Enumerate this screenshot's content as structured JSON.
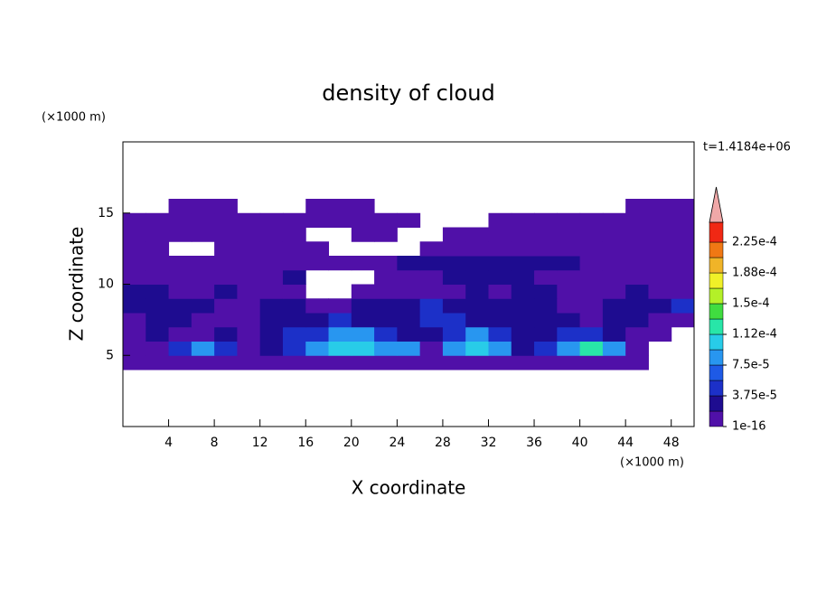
{
  "chart_data": {
    "type": "contour",
    "title": "density of cloud",
    "xlabel": "X coordinate",
    "ylabel": "Z coordinate",
    "x_unit": "(×1000 m)",
    "y_unit": "(×1000 m)",
    "annotation": "t=1.4184e+06",
    "xlim": [
      0,
      50
    ],
    "ylim": [
      0,
      20
    ],
    "xticks": [
      4,
      8,
      12,
      16,
      20,
      24,
      28,
      32,
      36,
      40,
      44,
      48
    ],
    "yticks": [
      5,
      10,
      15
    ],
    "x": [
      0,
      2,
      4,
      6,
      8,
      10,
      12,
      14,
      16,
      18,
      20,
      22,
      24,
      26,
      28,
      30,
      32,
      34,
      36,
      38,
      40,
      42,
      44,
      46,
      48,
      50
    ],
    "z": [
      4,
      5,
      6,
      7,
      8,
      9,
      10,
      11,
      12,
      13,
      14,
      15,
      16
    ],
    "values": [
      [
        1e-05,
        1e-05,
        1e-05,
        1e-05,
        1e-05,
        1e-05,
        1e-05,
        1e-05,
        1e-05,
        1e-05,
        1e-05,
        1e-05,
        1e-05,
        1e-05,
        1e-05,
        1e-05,
        1e-05,
        1e-05,
        1e-05,
        1e-05,
        1e-05,
        1e-05,
        1e-05,
        null,
        null
      ],
      [
        1e-05,
        1e-05,
        5e-05,
        8e-05,
        5e-05,
        1e-05,
        3e-05,
        5e-05,
        8e-05,
        0.000105,
        0.000105,
        8e-05,
        8e-05,
        1e-05,
        8e-05,
        0.000105,
        8e-05,
        3e-05,
        5e-05,
        8e-05,
        0.00013,
        8e-05,
        1e-05,
        null,
        null
      ],
      [
        1e-05,
        3e-05,
        1e-05,
        1e-05,
        3e-05,
        1e-05,
        3e-05,
        5e-05,
        5e-05,
        8e-05,
        8e-05,
        5e-05,
        3e-05,
        3e-05,
        5e-05,
        8e-05,
        5e-05,
        3e-05,
        3e-05,
        5e-05,
        5e-05,
        3e-05,
        1e-05,
        1e-05,
        null
      ],
      [
        1e-05,
        3e-05,
        3e-05,
        1e-05,
        1e-05,
        1e-05,
        3e-05,
        3e-05,
        3e-05,
        5e-05,
        3e-05,
        3e-05,
        3e-05,
        5e-05,
        5e-05,
        3e-05,
        3e-05,
        3e-05,
        3e-05,
        3e-05,
        1e-05,
        3e-05,
        3e-05,
        1e-05,
        1e-05
      ],
      [
        3e-05,
        3e-05,
        3e-05,
        3e-05,
        1e-05,
        1e-05,
        3e-05,
        3e-05,
        1e-05,
        1e-05,
        3e-05,
        3e-05,
        3e-05,
        5e-05,
        3e-05,
        3e-05,
        3e-05,
        3e-05,
        3e-05,
        1e-05,
        1e-05,
        3e-05,
        3e-05,
        3e-05,
        5e-05
      ],
      [
        3e-05,
        3e-05,
        1e-05,
        1e-05,
        3e-05,
        1e-05,
        1e-05,
        1e-05,
        null,
        null,
        1e-05,
        1e-05,
        1e-05,
        1e-05,
        1e-05,
        3e-05,
        1e-05,
        3e-05,
        3e-05,
        1e-05,
        1e-05,
        1e-05,
        3e-05,
        1e-05,
        1e-05
      ],
      [
        1e-05,
        1e-05,
        1e-05,
        1e-05,
        1e-05,
        1e-05,
        1e-05,
        3e-05,
        null,
        null,
        null,
        1e-05,
        1e-05,
        1e-05,
        3e-05,
        3e-05,
        3e-05,
        3e-05,
        1e-05,
        1e-05,
        1e-05,
        1e-05,
        1e-05,
        1e-05,
        1e-05
      ],
      [
        1e-05,
        1e-05,
        1e-05,
        1e-05,
        1e-05,
        1e-05,
        1e-05,
        1e-05,
        1e-05,
        1e-05,
        1e-05,
        1e-05,
        3e-05,
        3e-05,
        3e-05,
        3e-05,
        3e-05,
        3e-05,
        3e-05,
        3e-05,
        1e-05,
        1e-05,
        1e-05,
        1e-05,
        1e-05
      ],
      [
        1e-05,
        1e-05,
        null,
        null,
        1e-05,
        1e-05,
        1e-05,
        1e-05,
        1e-05,
        null,
        null,
        null,
        null,
        1e-05,
        1e-05,
        1e-05,
        1e-05,
        1e-05,
        1e-05,
        1e-05,
        1e-05,
        1e-05,
        1e-05,
        1e-05,
        1e-05
      ],
      [
        1e-05,
        1e-05,
        1e-05,
        1e-05,
        1e-05,
        1e-05,
        1e-05,
        1e-05,
        null,
        null,
        1e-05,
        1e-05,
        null,
        null,
        1e-05,
        1e-05,
        1e-05,
        1e-05,
        1e-05,
        1e-05,
        1e-05,
        1e-05,
        1e-05,
        1e-05,
        1e-05
      ],
      [
        1e-05,
        1e-05,
        1e-05,
        1e-05,
        1e-05,
        1e-05,
        1e-05,
        1e-05,
        1e-05,
        1e-05,
        1e-05,
        1e-05,
        1e-05,
        null,
        null,
        null,
        1e-05,
        1e-05,
        1e-05,
        1e-05,
        1e-05,
        1e-05,
        1e-05,
        1e-05,
        1e-05
      ],
      [
        null,
        null,
        1e-05,
        1e-05,
        1e-05,
        null,
        null,
        null,
        1e-05,
        1e-05,
        1e-05,
        null,
        null,
        null,
        null,
        null,
        null,
        null,
        null,
        null,
        null,
        null,
        1e-05,
        1e-05,
        1e-05
      ]
    ],
    "levels": [
      1e-16,
      1.875e-05,
      3.75e-05,
      5.625e-05,
      7.5e-05,
      9.375e-05,
      0.0001125,
      0.00013125,
      0.00015,
      0.00016875,
      0.0001875,
      0.00020625,
      0.000225
    ],
    "colors": [
      "#5010a8",
      "#1e0c90",
      "#1c30c8",
      "#1e5ae6",
      "#2896f0",
      "#28cce8",
      "#28e6a8",
      "#40dc40",
      "#b4f028",
      "#f0f028",
      "#f0b428",
      "#f07814",
      "#f02814",
      "#f0a8a8"
    ],
    "colorbar_ticks": [
      {
        "value": 1e-16,
        "label": "1e-16"
      },
      {
        "value": 3.75e-05,
        "label": "3.75e-5"
      },
      {
        "value": 7.5e-05,
        "label": "7.5e-5"
      },
      {
        "value": 0.0001125,
        "label": "1.12e-4"
      },
      {
        "value": 0.00015,
        "label": "1.5e-4"
      },
      {
        "value": 0.0001875,
        "label": "1.88e-4"
      },
      {
        "value": 0.000225,
        "label": "2.25e-4"
      }
    ]
  }
}
